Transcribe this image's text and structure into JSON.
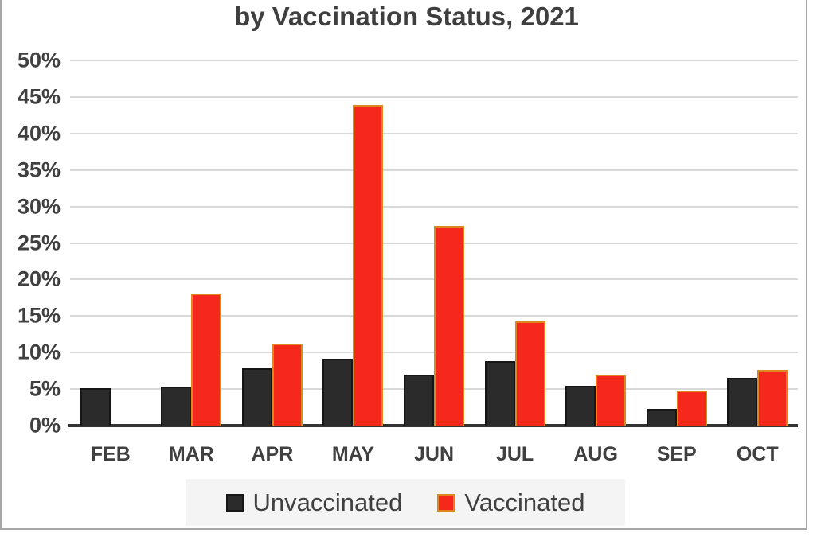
{
  "chart_data": {
    "type": "bar",
    "title": "by Vaccination Status, 2021",
    "categories": [
      "FEB",
      "MAR",
      "APR",
      "MAY",
      "JUN",
      "JUL",
      "AUG",
      "SEP",
      "OCT"
    ],
    "series": [
      {
        "name": "Unvaccinated",
        "fill": "#2b2b2b",
        "border": "#161616",
        "values": [
          5.1,
          5.3,
          7.8,
          9.1,
          7.0,
          8.8,
          5.4,
          2.3,
          6.5
        ]
      },
      {
        "name": "Vaccinated",
        "fill": "#f5281c",
        "border": "#e0861f",
        "values": [
          0,
          18.1,
          11.2,
          43.9,
          27.3,
          14.3,
          7.0,
          4.8,
          7.6
        ]
      }
    ],
    "ylim": [
      0,
      50
    ],
    "y_tick_step": 5,
    "y_tick_labels": [
      "0%",
      "5%",
      "10%",
      "15%",
      "20%",
      "25%",
      "30%",
      "35%",
      "40%",
      "45%",
      "50%"
    ],
    "grid": "horizontal",
    "legend_position": "bottom",
    "colors": {
      "grid": "#d9d9d9",
      "axis": "#333333",
      "text": "#404040",
      "legend_bg": "#f4f4f4",
      "frame": "#a6a6a6"
    }
  }
}
